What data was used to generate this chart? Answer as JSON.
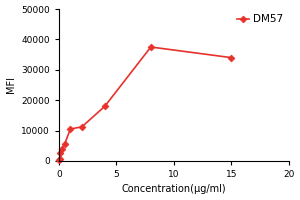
{
  "x_data": [
    0.0,
    0.06,
    0.12,
    0.25,
    0.5,
    1.0,
    2.0,
    4.0,
    8.0,
    15.0
  ],
  "y_data": [
    200,
    700,
    2500,
    4000,
    5500,
    10500,
    11200,
    18000,
    37500,
    34000
  ],
  "color": "#e8312a",
  "markersize": 3.5,
  "linewidth": 1.2,
  "xlabel": "Concentration(μg/ml)",
  "ylabel": "MFI",
  "xlim": [
    0,
    20
  ],
  "ylim": [
    0,
    50000
  ],
  "xticks": [
    0,
    5,
    10,
    15,
    20
  ],
  "yticks": [
    0,
    10000,
    20000,
    30000,
    40000,
    50000
  ],
  "ytick_labels": [
    "0",
    "10000",
    "20000",
    "30000",
    "40000",
    "50000"
  ],
  "legend_label": "DM57",
  "xlabel_fontsize": 7,
  "ylabel_fontsize": 7,
  "tick_fontsize": 6.5
}
